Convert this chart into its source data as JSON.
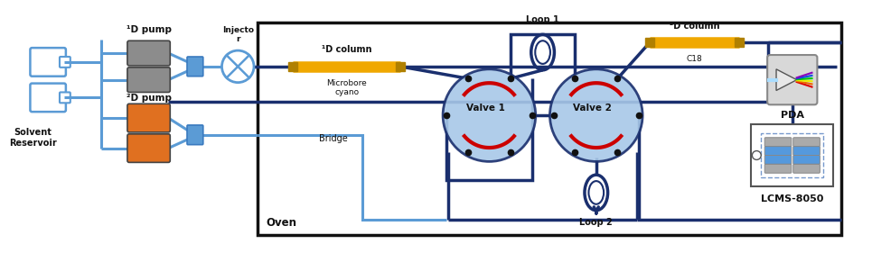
{
  "bg_color": "#ffffff",
  "lc": "#5b9bd5",
  "ld": "#1a2f6e",
  "pump1_color": "#8c8c8c",
  "pump2_color": "#e07020",
  "col_color": "#f0a800",
  "valve_fill": "#a8c8e8",
  "valve_edge": "#1a2f6e",
  "arc_color": "#cc0000",
  "labels": {
    "pump1": "¹D pump",
    "pump2": "²D pump",
    "solvent": "Solvent\nReservoir",
    "injector": "Injecto\nr",
    "col1d": "¹D column",
    "col1d_sub": "Microbore\ncyano",
    "col2d": "²D column",
    "col2d_sub": "C18",
    "valve1": "Valve 1",
    "valve2": "Valve 2",
    "loop1": "Loop 1",
    "loop2": "Loop 2",
    "bridge": "Bridge",
    "pda": "PDA",
    "lcms": "LCMS-8050",
    "oven": "Oven"
  }
}
